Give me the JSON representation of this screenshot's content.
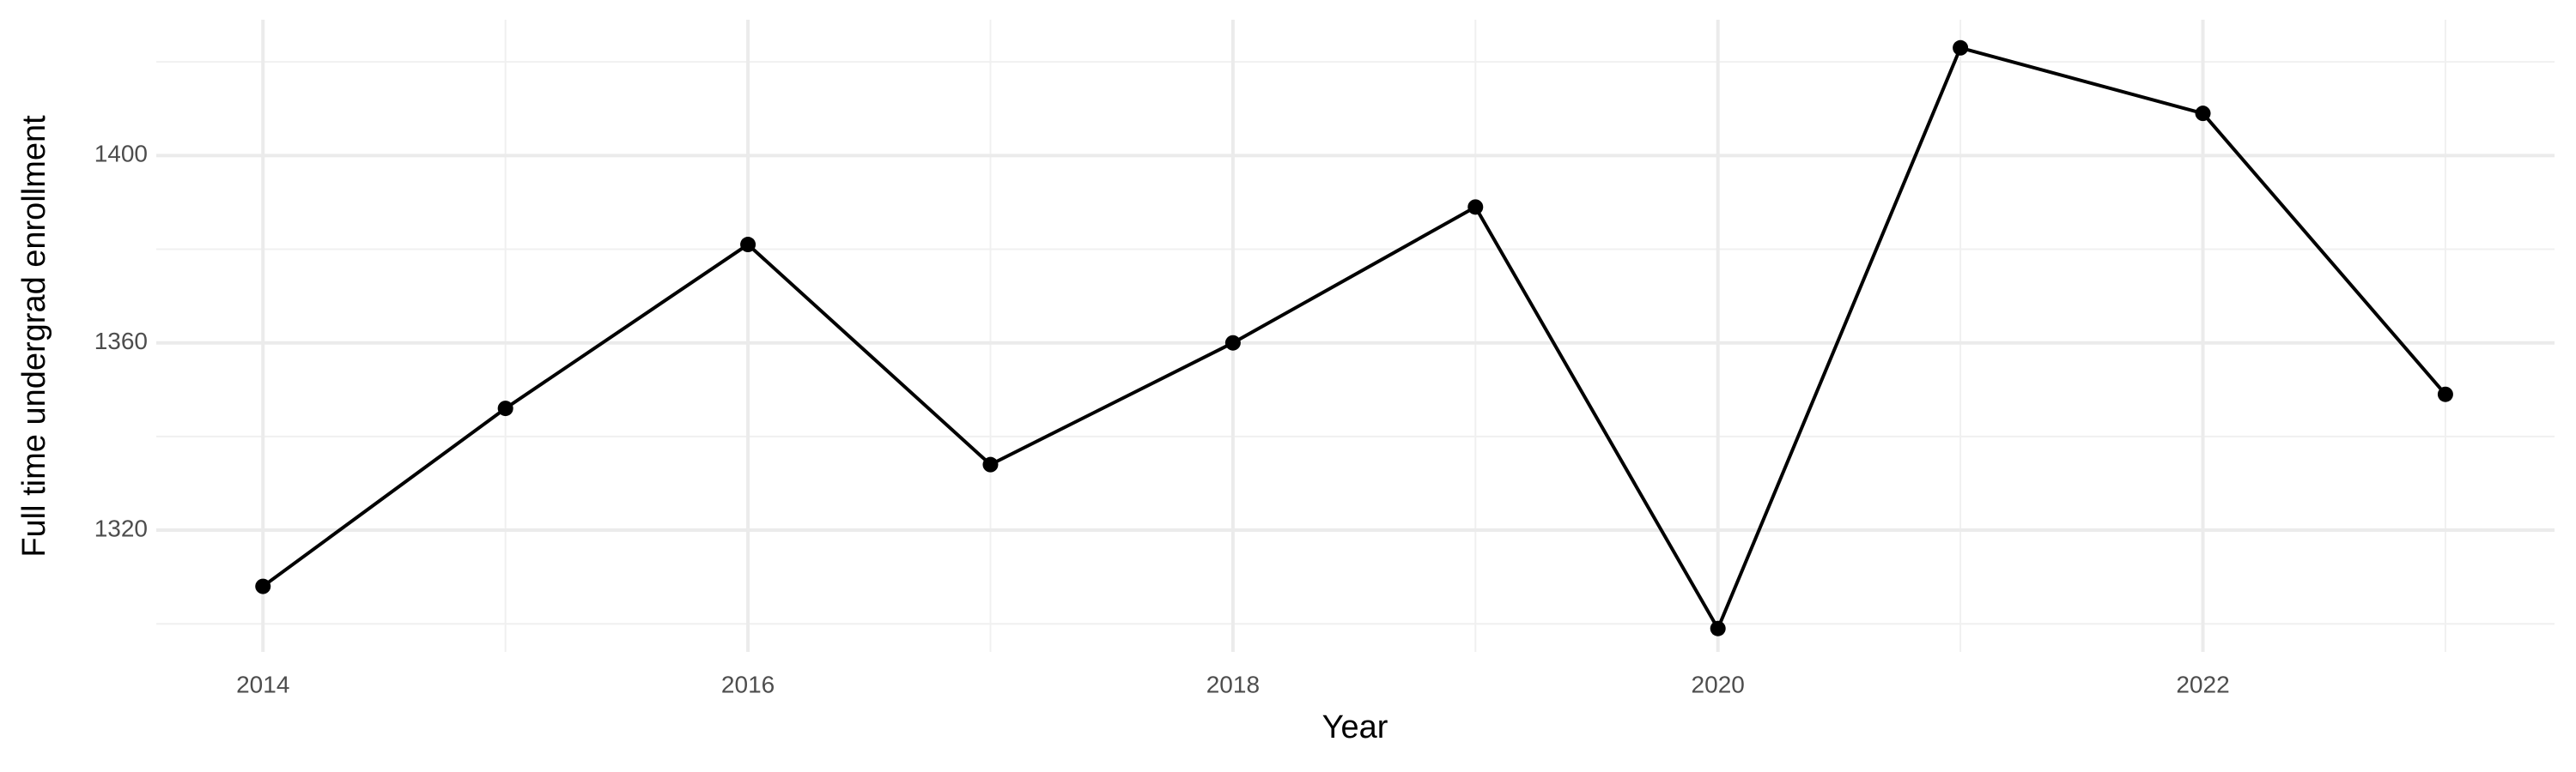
{
  "chart_data": {
    "type": "line",
    "x_label": "Year",
    "y_label": "Full time undergrad enrollment",
    "x": [
      2014,
      2015,
      2016,
      2017,
      2018,
      2019,
      2020,
      2021,
      2022,
      2023
    ],
    "series": [
      {
        "name": "Enrollment",
        "color": "#000000",
        "values": [
          1308,
          1346,
          1381,
          1334,
          1360,
          1389,
          1299,
          1423,
          1409,
          1349
        ]
      }
    ],
    "xlim": [
      2013.56,
      2023.45
    ],
    "xticks": [
      2014,
      2016,
      2018,
      2020,
      2022
    ],
    "ylim": [
      1294,
      1429
    ],
    "yticks": [
      1320,
      1360,
      1400
    ],
    "grid": true,
    "minor_grid": true,
    "markers": true
  }
}
